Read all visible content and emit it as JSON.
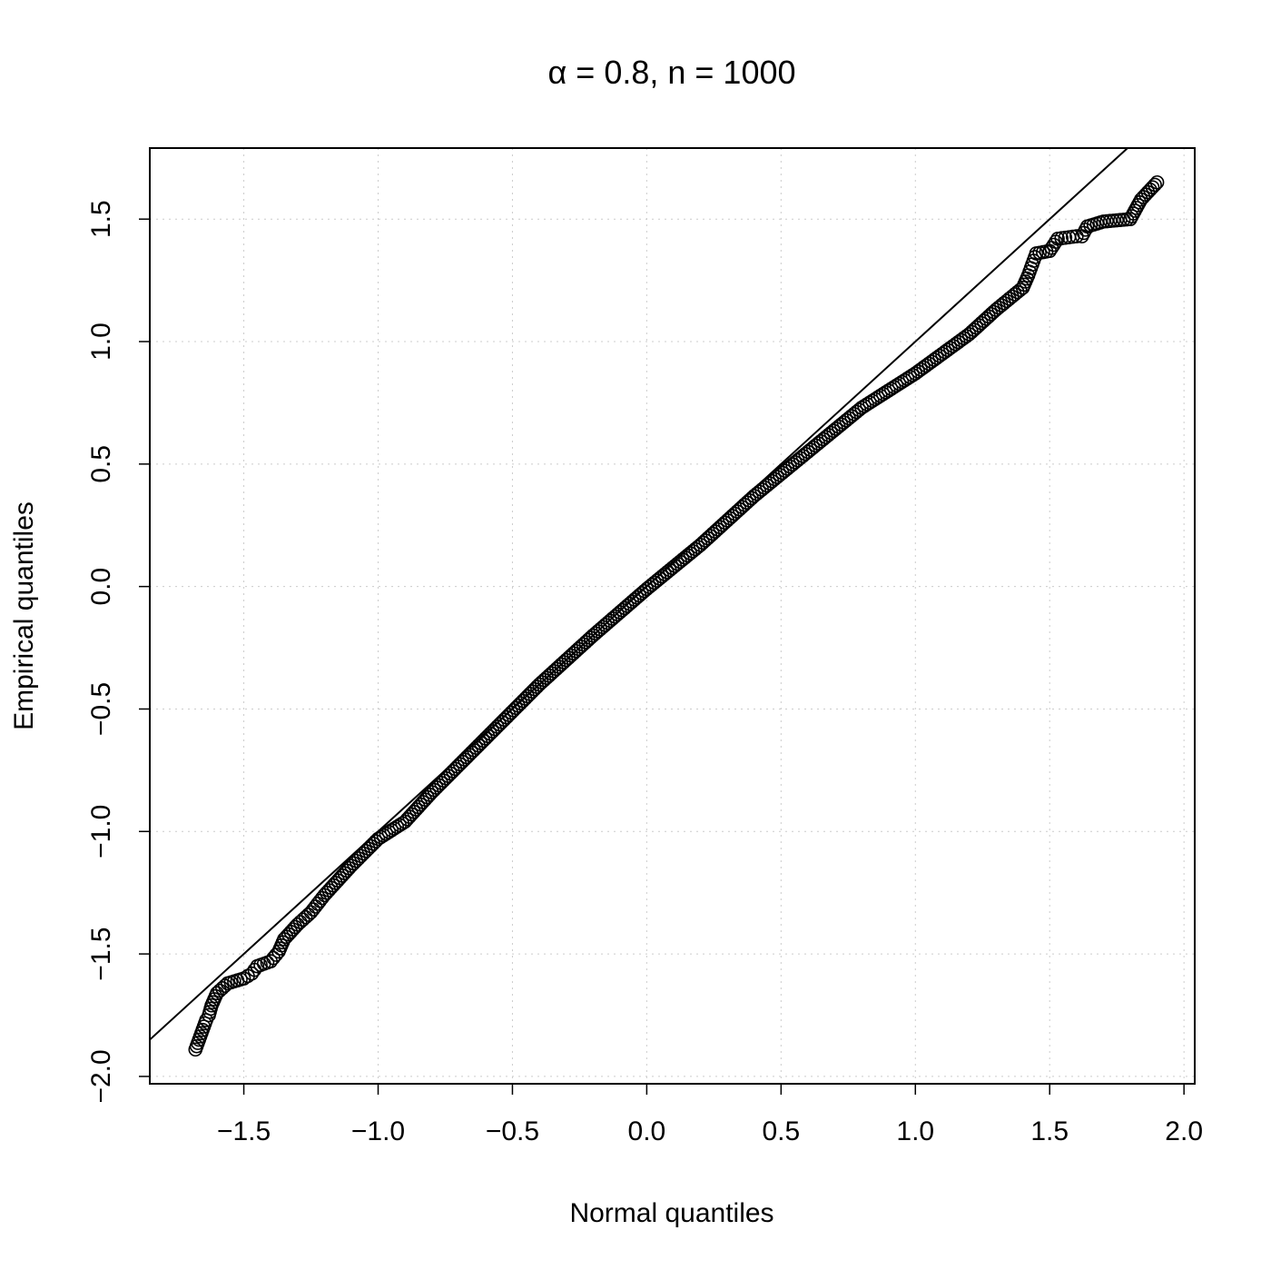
{
  "chart_data": {
    "type": "scatter",
    "title": "α = 0.8, n = 1000",
    "xlabel": "Normal quantiles",
    "ylabel": "Empirical quantiles",
    "xlim": [
      -1.85,
      2.04
    ],
    "ylim": [
      -2.03,
      1.79
    ],
    "x_ticks": [
      -1.5,
      -1.0,
      -0.5,
      0.0,
      0.5,
      1.0,
      1.5,
      2.0
    ],
    "x_tick_labels": [
      "−1.5",
      "−1.0",
      "−0.5",
      "0.0",
      "0.5",
      "1.0",
      "1.5",
      "2.0"
    ],
    "y_ticks": [
      -2.0,
      -1.5,
      -1.0,
      -0.5,
      0.0,
      0.5,
      1.0,
      1.5
    ],
    "y_tick_labels": [
      "−2.0",
      "−1.5",
      "−1.0",
      "−0.5",
      "0.0",
      "0.5",
      "1.0",
      "1.5"
    ],
    "grid": true,
    "grid_style": "dotted",
    "reference_line": {
      "slope": 1,
      "intercept": 0
    },
    "series": [
      {
        "marker": "open-circle",
        "color": "#000000",
        "n": 1000,
        "distribution": "q-q against normal; sample quantiles fall below y = x, curving away at both tails",
        "points": [
          [
            -1.68,
            -1.89
          ],
          [
            -1.64,
            -1.77
          ],
          [
            -1.63,
            -1.75
          ],
          [
            -1.62,
            -1.71
          ],
          [
            -1.6,
            -1.66
          ],
          [
            -1.58,
            -1.64
          ],
          [
            -1.56,
            -1.62
          ],
          [
            -1.5,
            -1.6
          ],
          [
            -1.47,
            -1.58
          ],
          [
            -1.45,
            -1.55
          ],
          [
            -1.4,
            -1.53
          ],
          [
            -1.37,
            -1.49
          ],
          [
            -1.35,
            -1.44
          ],
          [
            -1.3,
            -1.38
          ],
          [
            -1.25,
            -1.33
          ],
          [
            -1.2,
            -1.26
          ],
          [
            -1.1,
            -1.14
          ],
          [
            -1.0,
            -1.03
          ],
          [
            -0.9,
            -0.96
          ],
          [
            -0.8,
            -0.84
          ],
          [
            -0.6,
            -0.62
          ],
          [
            -0.4,
            -0.4
          ],
          [
            -0.2,
            -0.2
          ],
          [
            0.0,
            -0.01
          ],
          [
            0.2,
            0.17
          ],
          [
            0.4,
            0.37
          ],
          [
            0.6,
            0.55
          ],
          [
            0.8,
            0.73
          ],
          [
            1.0,
            0.87
          ],
          [
            1.2,
            1.03
          ],
          [
            1.3,
            1.13
          ],
          [
            1.4,
            1.22
          ],
          [
            1.42,
            1.27
          ],
          [
            1.44,
            1.33
          ],
          [
            1.45,
            1.36
          ],
          [
            1.5,
            1.37
          ],
          [
            1.53,
            1.42
          ],
          [
            1.6,
            1.43
          ],
          [
            1.62,
            1.43
          ],
          [
            1.64,
            1.47
          ],
          [
            1.7,
            1.49
          ],
          [
            1.8,
            1.5
          ],
          [
            1.84,
            1.58
          ],
          [
            1.9,
            1.65
          ]
        ]
      }
    ]
  }
}
